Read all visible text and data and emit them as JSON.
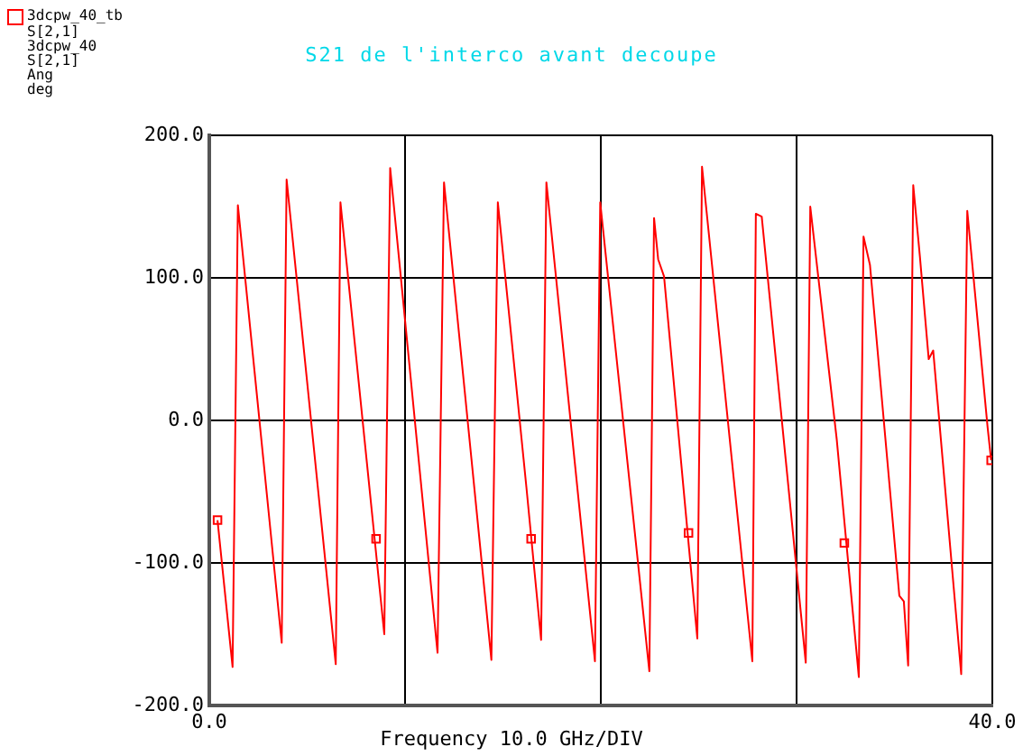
{
  "chart_data": {
    "type": "line",
    "title": "S21 de l'interco avant decoupe",
    "xlabel": "Frequency 10.0 GHz/DIV",
    "xlim": [
      0,
      40
    ],
    "xticks": [
      {
        "value": 0,
        "label": "0.0"
      },
      {
        "value": 10,
        "label": null
      },
      {
        "value": 20,
        "label": null
      },
      {
        "value": 30,
        "label": null
      },
      {
        "value": 40,
        "label": "40.0"
      }
    ],
    "ylim": [
      -200,
      200
    ],
    "yticks": [
      {
        "value": -200,
        "label": "-200.0"
      },
      {
        "value": -100,
        "label": "-100.0"
      },
      {
        "value": 0,
        "label": "0.0"
      },
      {
        "value": 100,
        "label": "100.0"
      },
      {
        "value": 200,
        "label": "200.0"
      }
    ],
    "grid": true,
    "legend": "top left",
    "line_style": "solid",
    "series": [
      {
        "name": "3dcpw_40_tb\nS[2,1]\n3dcpw_40\nS[2,1]\nAng\ndeg",
        "color": "#ff0000",
        "marker": "none",
        "x": [
          0.42,
          1.19,
          1.46,
          3.7,
          3.95,
          6.46,
          6.7,
          8.94,
          9.24,
          11.66,
          11.99,
          14.41,
          14.74,
          16.2,
          16.95,
          17.22,
          19.7,
          19.97,
          22.48,
          22.72,
          22.93,
          23.23,
          24.93,
          25.17,
          27.74,
          27.92,
          28.22,
          30.47,
          30.7,
          32.05,
          33.18,
          33.42,
          33.75,
          35.25,
          35.48,
          35.7,
          35.96,
          36.3,
          36.75,
          36.98,
          38.41,
          38.72,
          39.76,
          39.94
        ],
        "values": [
          -70,
          -173,
          151,
          -156,
          169,
          -171,
          153,
          -150,
          177,
          -163,
          167,
          -168,
          153,
          -47,
          -154,
          167,
          -169,
          153,
          -176,
          142,
          113,
          101,
          -153,
          178,
          -169,
          145,
          143,
          -170,
          150,
          -13,
          -180,
          129,
          109,
          -123,
          -127,
          -172,
          165,
          115,
          43,
          49,
          -178,
          147,
          -5,
          -28
        ]
      },
      {
        "type": "scatter",
        "color": "#ff0000",
        "marker": "square",
        "x": [
          0.42,
          8.52,
          16.44,
          24.48,
          32.44,
          39.94
        ],
        "values": [
          -70,
          -83,
          -83,
          -79,
          -86,
          -28
        ]
      }
    ]
  }
}
